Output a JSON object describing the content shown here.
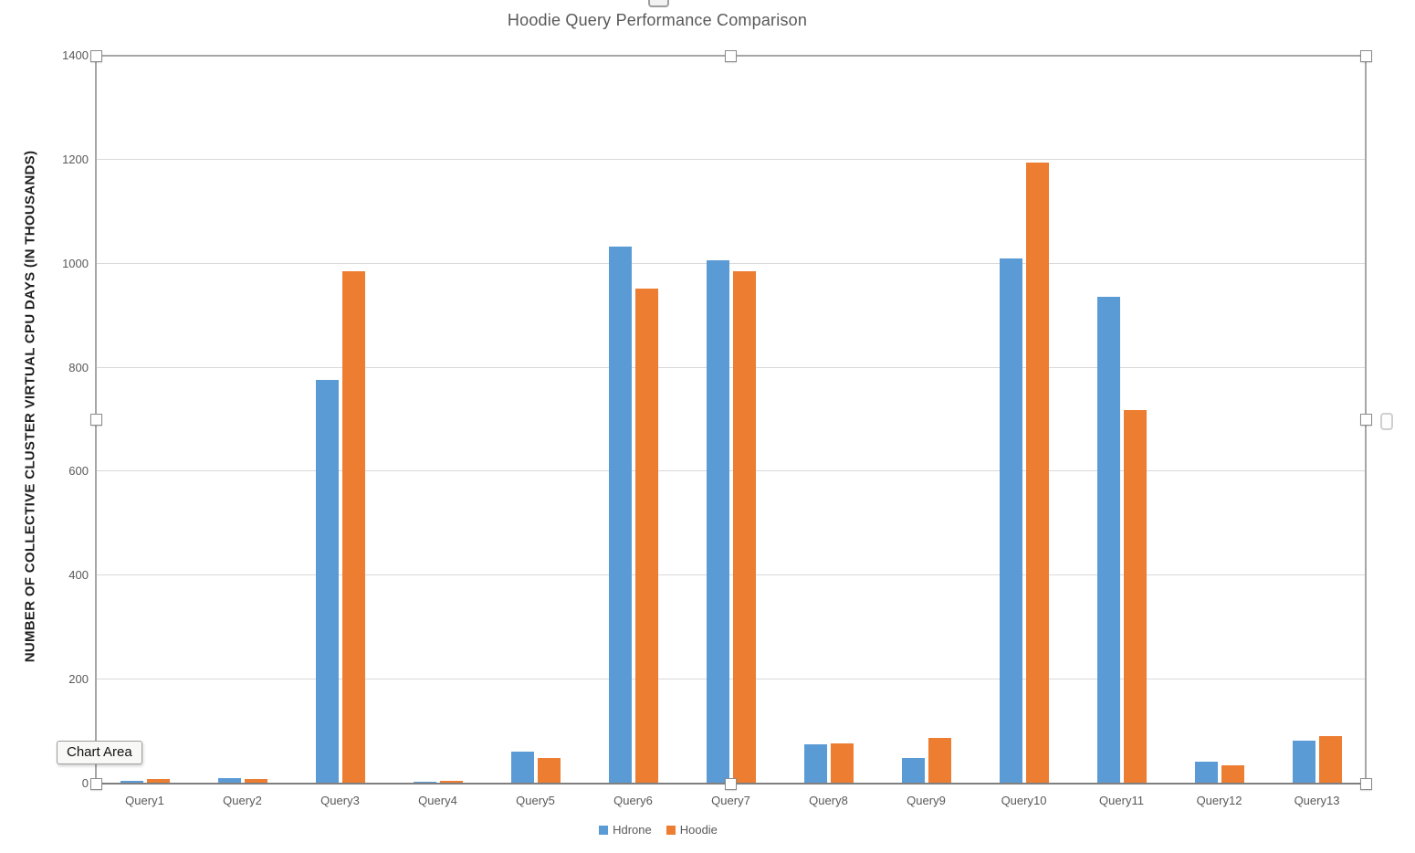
{
  "title": "Hoodie Query Performance Comparison",
  "tooltip": {
    "text": "Chart Area"
  },
  "y_axis": {
    "label": "NUMBER OF COLLECTIVE CLUSTER VIRTUAL CPU DAYS (IN THOUSANDS)",
    "ticks": [
      0,
      200,
      400,
      600,
      800,
      1000,
      1200,
      1400
    ]
  },
  "colors": {
    "hdrone": "#5B9BD5",
    "hoodie": "#ED7D31",
    "gridline": "#d9d9d9",
    "axis_line": "#7f7f7f",
    "text": "#595959"
  },
  "chart_data": {
    "type": "bar",
    "title": "Hoodie Query Performance Comparison",
    "categories": [
      "Query1",
      "Query2",
      "Query3",
      "Query4",
      "Query5",
      "Query6",
      "Query7",
      "Query8",
      "Query9",
      "Query10",
      "Query11",
      "Query12",
      "Query13"
    ],
    "series": [
      {
        "name": "Hdrone",
        "color": "#5B9BD5",
        "values": [
          5,
          10,
          777,
          4,
          62,
          1032,
          1006,
          76,
          50,
          1010,
          936,
          42,
          83
        ]
      },
      {
        "name": "Hoodie",
        "color": "#ED7D31",
        "values": [
          8,
          9,
          986,
          5,
          50,
          952,
          986,
          77,
          88,
          1195,
          719,
          35,
          92
        ]
      }
    ],
    "xlabel": "",
    "ylabel": "NUMBER OF COLLECTIVE CLUSTER VIRTUAL CPU DAYS (IN THOUSANDS)",
    "ylim": [
      0,
      1400
    ],
    "ytick_interval": 200,
    "grid": true,
    "legend_position": "bottom"
  }
}
